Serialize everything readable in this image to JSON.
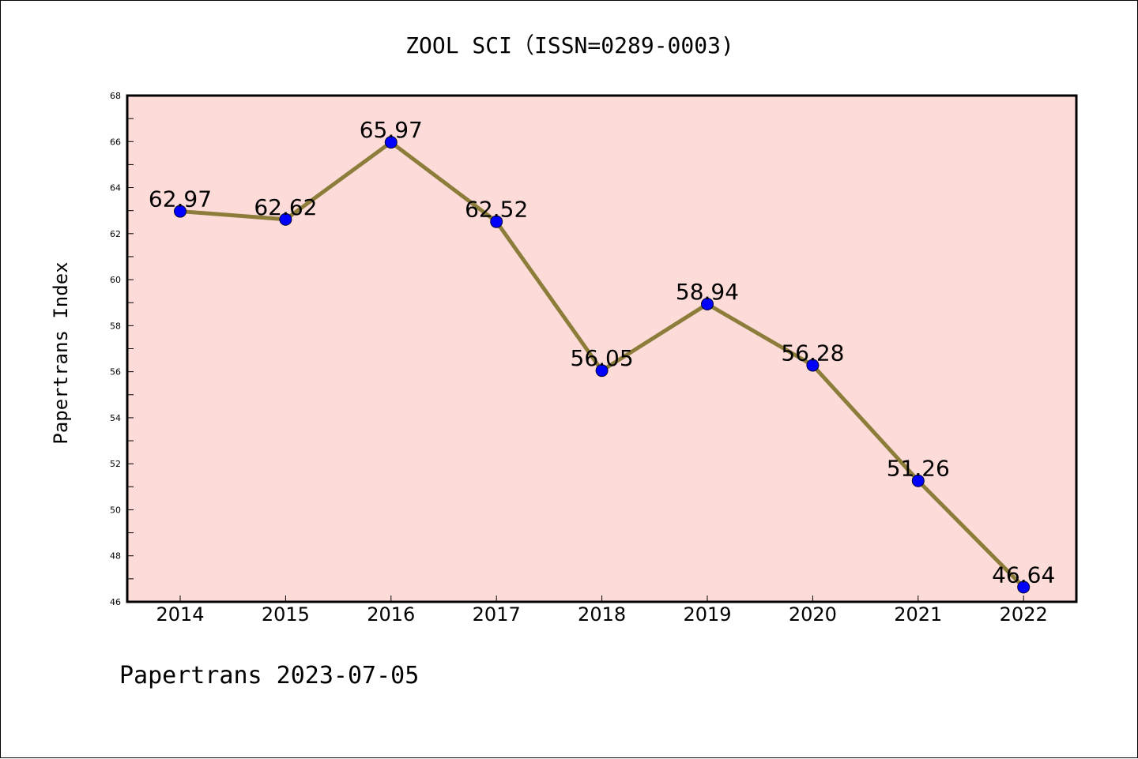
{
  "title": "ZOOL SCI（ISSN=0289-0003)",
  "footer": "Papertrans 2023-07-05",
  "chart_data": {
    "type": "line",
    "title": "ZOOL SCI（ISSN=0289-0003)",
    "xlabel": "",
    "ylabel": "Papertrans Index",
    "categories": [
      "2014",
      "2015",
      "2016",
      "2017",
      "2018",
      "2019",
      "2020",
      "2021",
      "2022"
    ],
    "series": [
      {
        "values": [
          62.97,
          62.62,
          65.97,
          62.52,
          56.05,
          58.94,
          56.28,
          51.26,
          46.64
        ],
        "data_labels": [
          "62.97",
          "62.62",
          "65.97",
          "62.52",
          "56.05",
          "58.94",
          "56.28",
          "51.26",
          "46.64"
        ]
      }
    ],
    "ylim": [
      46,
      68
    ],
    "yticks": [
      "46",
      "48",
      "50",
      "52",
      "54",
      "56",
      "58",
      "60",
      "62",
      "64",
      "66",
      "68"
    ],
    "grid": false,
    "colors": {
      "plot_background": "#fddbd9",
      "line": "#8c7d3a",
      "marker": "#0000ff"
    }
  }
}
